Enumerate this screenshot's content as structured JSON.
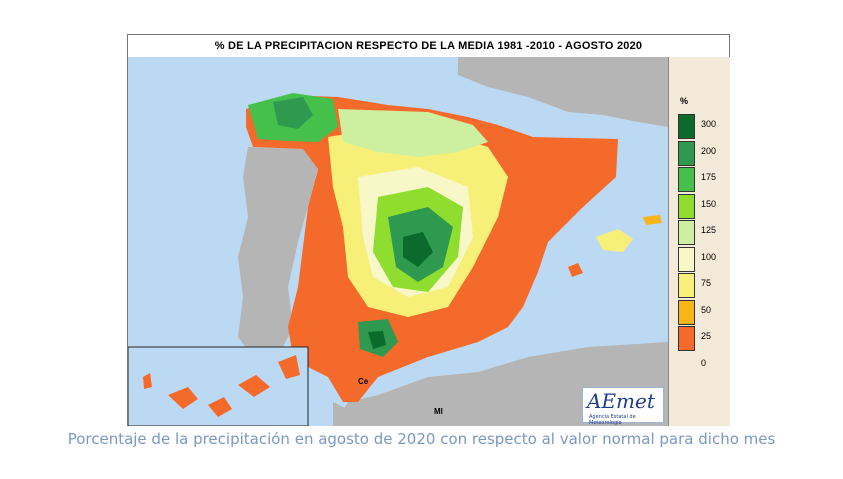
{
  "map": {
    "title": "% DE LA PRECIPITACION RESPECTO DE LA MEDIA 1981 -2010 - AGOSTO 2020",
    "places": {
      "ceuta": "Ce",
      "melilla": "Ml"
    },
    "land_color": "#b5b5b5",
    "sea_color": "#bcd9f3"
  },
  "legend": {
    "unit": "%",
    "classes": [
      {
        "label": "300",
        "color": "#0b6b2d"
      },
      {
        "label": "200",
        "color": "#2f9a4f"
      },
      {
        "label": "175",
        "color": "#45c04a"
      },
      {
        "label": "150",
        "color": "#8fdd2f"
      },
      {
        "label": "125",
        "color": "#cdf0a0"
      },
      {
        "label": "100",
        "color": "#f7f7c8"
      },
      {
        "label": "75",
        "color": "#f7f078"
      },
      {
        "label": "50",
        "color": "#f7b519"
      },
      {
        "label": "25",
        "color": "#f46a2b"
      },
      {
        "label": "0",
        "color": "#f46a2b"
      }
    ]
  },
  "logo": {
    "text": "AEmet",
    "subtitle": "Agencia Estatal de Meteorología"
  },
  "caption": "Porcentaje de la precipitación en agosto de 2020 con respecto al valor normal para dicho mes"
}
